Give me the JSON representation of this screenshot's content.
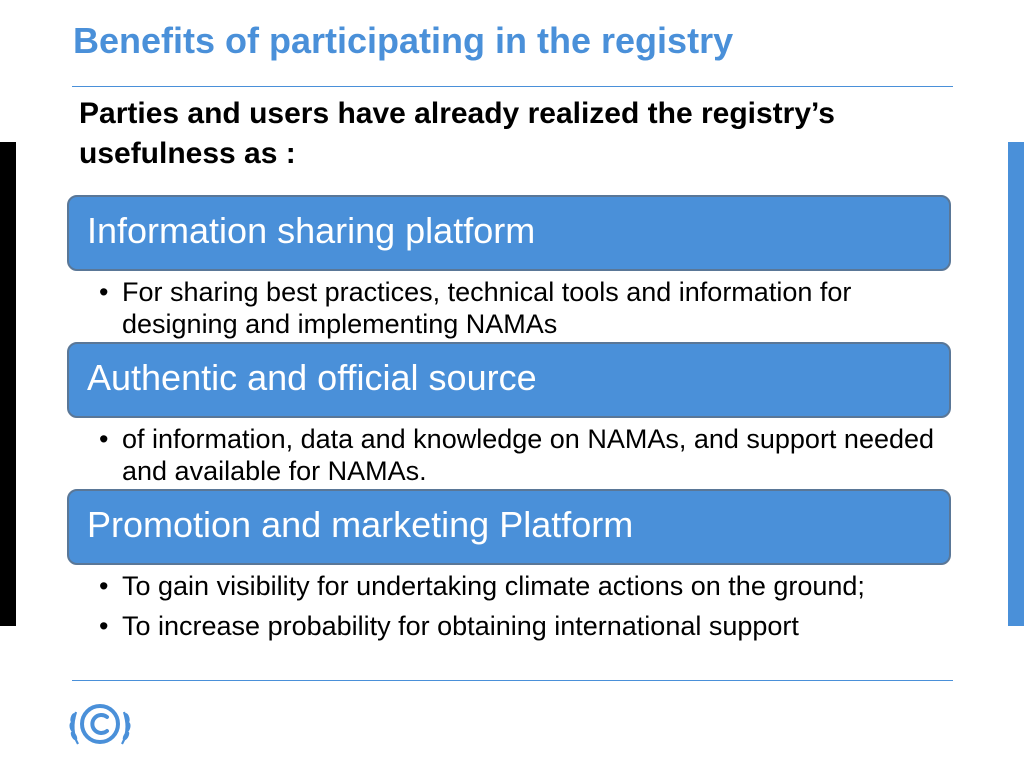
{
  "title": "Benefits of participating in the registry",
  "subtitle": "Parties and users have already realized the registry’s usefulness as :",
  "items": [
    {
      "heading": "Information sharing platform",
      "bullets": [
        "For sharing best practices, technical tools and information for designing and implementing NAMAs"
      ]
    },
    {
      "heading": "Authentic and official source",
      "bullets": [
        "of information, data and knowledge on NAMAs, and support needed and available for NAMAs."
      ]
    },
    {
      "heading": "Promotion and marketing Platform",
      "bullets": [
        "To gain visibility for undertaking climate actions on the ground;",
        "To increase probability for obtaining international support"
      ]
    }
  ],
  "bullet_glyph": "•",
  "logo": {
    "icon": "unfccc-emblem-icon"
  },
  "colors": {
    "accent": "#4a90d9",
    "box_border": "#5a7797",
    "left_bar": "#000000"
  }
}
